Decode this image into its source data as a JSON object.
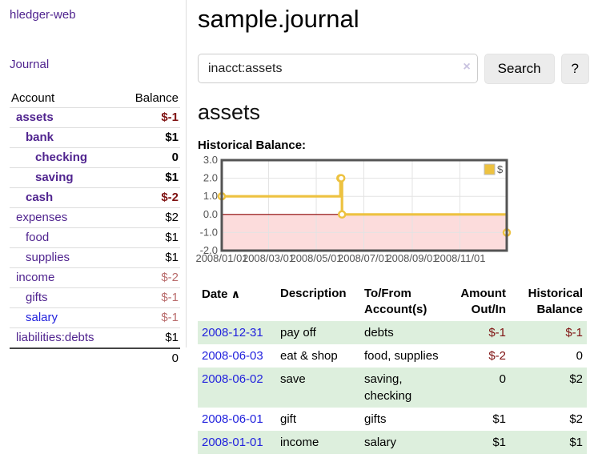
{
  "app": {
    "brand": "hledger-web"
  },
  "nav": {
    "journal": "Journal"
  },
  "sidebar": {
    "columns": {
      "account": "Account",
      "balance": "Balance"
    },
    "accounts": [
      {
        "name": "assets",
        "balance": "$-1"
      },
      {
        "name": "bank",
        "balance": "$1"
      },
      {
        "name": "checking",
        "balance": "0"
      },
      {
        "name": "saving",
        "balance": "$1"
      },
      {
        "name": "cash",
        "balance": "$-2"
      },
      {
        "name": "expenses",
        "balance": "$2"
      },
      {
        "name": "food",
        "balance": "$1"
      },
      {
        "name": "supplies",
        "balance": "$1"
      },
      {
        "name": "income",
        "balance": "$-2"
      },
      {
        "name": "gifts",
        "balance": "$-1"
      },
      {
        "name": "salary",
        "balance": "$-1"
      },
      {
        "name": "liabilities:debts",
        "balance": "$1"
      }
    ],
    "total": "0"
  },
  "header": {
    "title": "sample.journal"
  },
  "search": {
    "value": "inacct:assets",
    "clear_icon": "×",
    "search_button": "Search",
    "help_button": "?"
  },
  "register": {
    "heading": "assets",
    "chart_label": "Historical Balance:",
    "table": {
      "headers": {
        "date": "Date",
        "sort_icon": "∧",
        "description": "Description",
        "accounts": "To/From Account(s)",
        "amount": "Amount Out/In",
        "balance": "Historical Balance"
      },
      "rows": [
        {
          "date": "2008-12-31",
          "description": "pay off",
          "accounts": "debts",
          "amount": "$-1",
          "balance": "$-1"
        },
        {
          "date": "2008-06-03",
          "description": "eat & shop",
          "accounts": "food, supplies",
          "amount": "$-2",
          "balance": "0"
        },
        {
          "date": "2008-06-02",
          "description": "save",
          "accounts": "saving, checking",
          "amount": "0",
          "balance": "$2"
        },
        {
          "date": "2008-06-01",
          "description": "gift",
          "accounts": "gifts",
          "amount": "$1",
          "balance": "$2"
        },
        {
          "date": "2008-01-01",
          "description": "income",
          "accounts": "salary",
          "amount": "$1",
          "balance": "$1"
        }
      ]
    }
  },
  "chart_data": {
    "type": "line",
    "step": true,
    "title": "Historical Balance",
    "series": [
      {
        "name": "$",
        "color": "#edc240",
        "points": [
          [
            "2008-01-01",
            1
          ],
          [
            "2008-06-01",
            2
          ],
          [
            "2008-06-02",
            2
          ],
          [
            "2008-06-03",
            0
          ],
          [
            "2008-12-31",
            -1
          ]
        ]
      }
    ],
    "xlim": [
      "2008-01-01",
      "2008-12-31"
    ],
    "ylim": [
      -2,
      3
    ],
    "yticks": [
      3,
      2,
      1,
      0,
      -1,
      -2
    ],
    "ytick_labels": [
      "3.0",
      "2.0",
      "1.0",
      "0.0",
      "-1.0",
      "-2.0"
    ],
    "xticks": [
      "2008-01-01",
      "2008-03-01",
      "2008-05-01",
      "2008-07-01",
      "2008-09-01",
      "2008-11-01"
    ],
    "xtick_labels": [
      "2008/01/01",
      "2008/03/01",
      "2008/05/01",
      "2008/07/01",
      "2008/09/01",
      "2008/11/01"
    ],
    "legend": {
      "position": "top-right",
      "entries": [
        {
          "label": "$",
          "color": "#edc240"
        }
      ]
    },
    "grid": true,
    "negative_region_color": "#fcdcdc",
    "zero_line_color": "#8b0000",
    "grid_color": "#e3e3e3",
    "border_color": "#545454"
  },
  "colors": {
    "link_purple": "#50248f",
    "link_blue": "#2222dd",
    "negative_strong": "#7f1212",
    "negative_light": "#b96c6c",
    "stripe_green": "#ddefdd",
    "series_yellow": "#edc240"
  }
}
